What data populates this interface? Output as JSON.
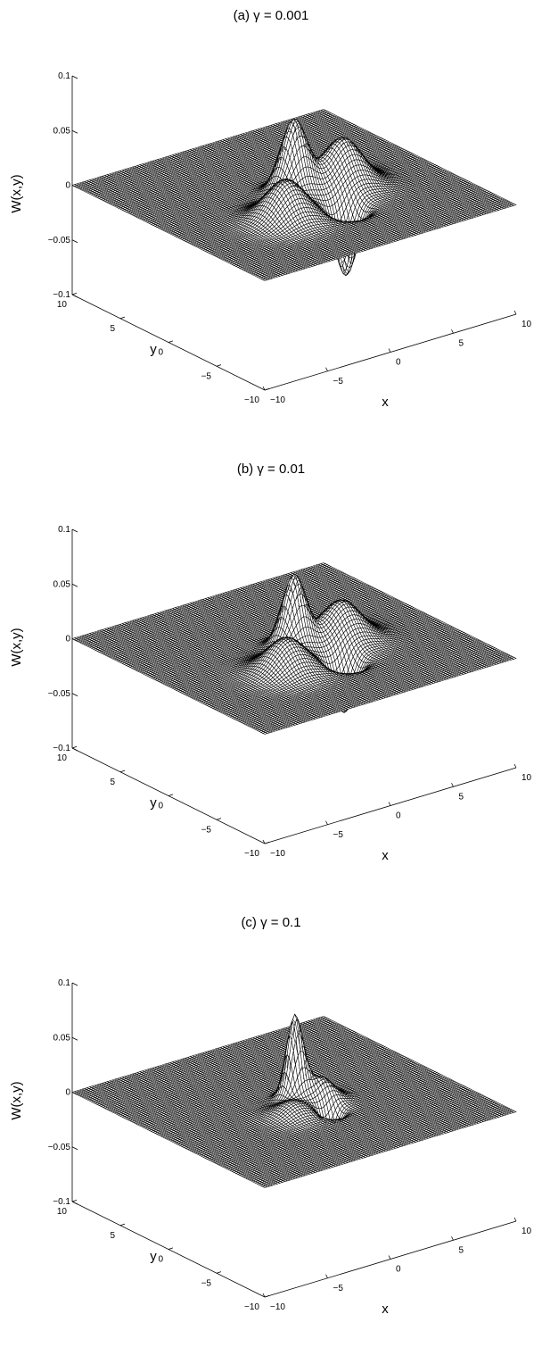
{
  "chart_data": [
    {
      "type": "surface",
      "title": "(a) γ = 0.001",
      "xlabel": "x",
      "ylabel": "y",
      "zlabel": "W(x,y)",
      "xlim": [
        -10,
        10
      ],
      "ylim": [
        -10,
        10
      ],
      "zlim": [
        -0.1,
        0.1
      ],
      "xticks": [
        "−10",
        "−5",
        "0",
        "5",
        "10"
      ],
      "yticks": [
        "−10",
        "−5",
        "0",
        "5",
        "10"
      ],
      "zticks": [
        "−0.1",
        "−0.05",
        "0",
        "0.05",
        "0.1"
      ],
      "peaks": [
        {
          "x": 0.0,
          "y": 0.0,
          "amplitude": 0.068,
          "width": 0.9
        },
        {
          "x": 3.4,
          "y": -0.6,
          "amplitude": 0.043,
          "width": 1.3
        },
        {
          "x": -2.8,
          "y": -2.8,
          "amplitude": 0.036,
          "width": 1.3
        },
        {
          "x": 1.2,
          "y": -3.8,
          "amplitude": -0.062,
          "width": 0.7
        }
      ]
    },
    {
      "type": "surface",
      "title": "(b) γ = 0.01",
      "xlabel": "x",
      "ylabel": "y",
      "zlabel": "W(x,y)",
      "xlim": [
        -10,
        10
      ],
      "ylim": [
        -10,
        10
      ],
      "zlim": [
        -0.1,
        0.1
      ],
      "xticks": [
        "−10",
        "−5",
        "0",
        "5",
        "10"
      ],
      "yticks": [
        "−10",
        "−5",
        "0",
        "5",
        "10"
      ],
      "zticks": [
        "−0.1",
        "−0.05",
        "0",
        "0.05",
        "0.1"
      ],
      "peaks": [
        {
          "x": 0.0,
          "y": 0.0,
          "amplitude": 0.066,
          "width": 0.8
        },
        {
          "x": 3.3,
          "y": -0.6,
          "amplitude": 0.035,
          "width": 1.3
        },
        {
          "x": -2.6,
          "y": -2.6,
          "amplitude": 0.03,
          "width": 1.3
        },
        {
          "x": 1.2,
          "y": -3.6,
          "amplitude": -0.048,
          "width": 0.7
        }
      ]
    },
    {
      "type": "surface",
      "title": "(c) γ = 0.1",
      "xlabel": "x",
      "ylabel": "y",
      "zlabel": "W(x,y)",
      "xlim": [
        -10,
        10
      ],
      "ylim": [
        -10,
        10
      ],
      "zlim": [
        -0.1,
        0.1
      ],
      "xticks": [
        "−10",
        "−5",
        "0",
        "5",
        "10"
      ],
      "yticks": [
        "−10",
        "−5",
        "0",
        "5",
        "10"
      ],
      "zticks": [
        "−0.1",
        "−0.05",
        "0",
        "0.05",
        "0.1"
      ],
      "peaks": [
        {
          "x": 0.2,
          "y": 0.2,
          "amplitude": 0.076,
          "width": 0.55
        },
        {
          "x": 1.6,
          "y": -0.8,
          "amplitude": 0.02,
          "width": 0.8
        },
        {
          "x": -1.3,
          "y": -1.6,
          "amplitude": 0.012,
          "width": 1.0
        },
        {
          "x": 0.9,
          "y": -2.6,
          "amplitude": -0.028,
          "width": 0.5
        }
      ]
    }
  ]
}
